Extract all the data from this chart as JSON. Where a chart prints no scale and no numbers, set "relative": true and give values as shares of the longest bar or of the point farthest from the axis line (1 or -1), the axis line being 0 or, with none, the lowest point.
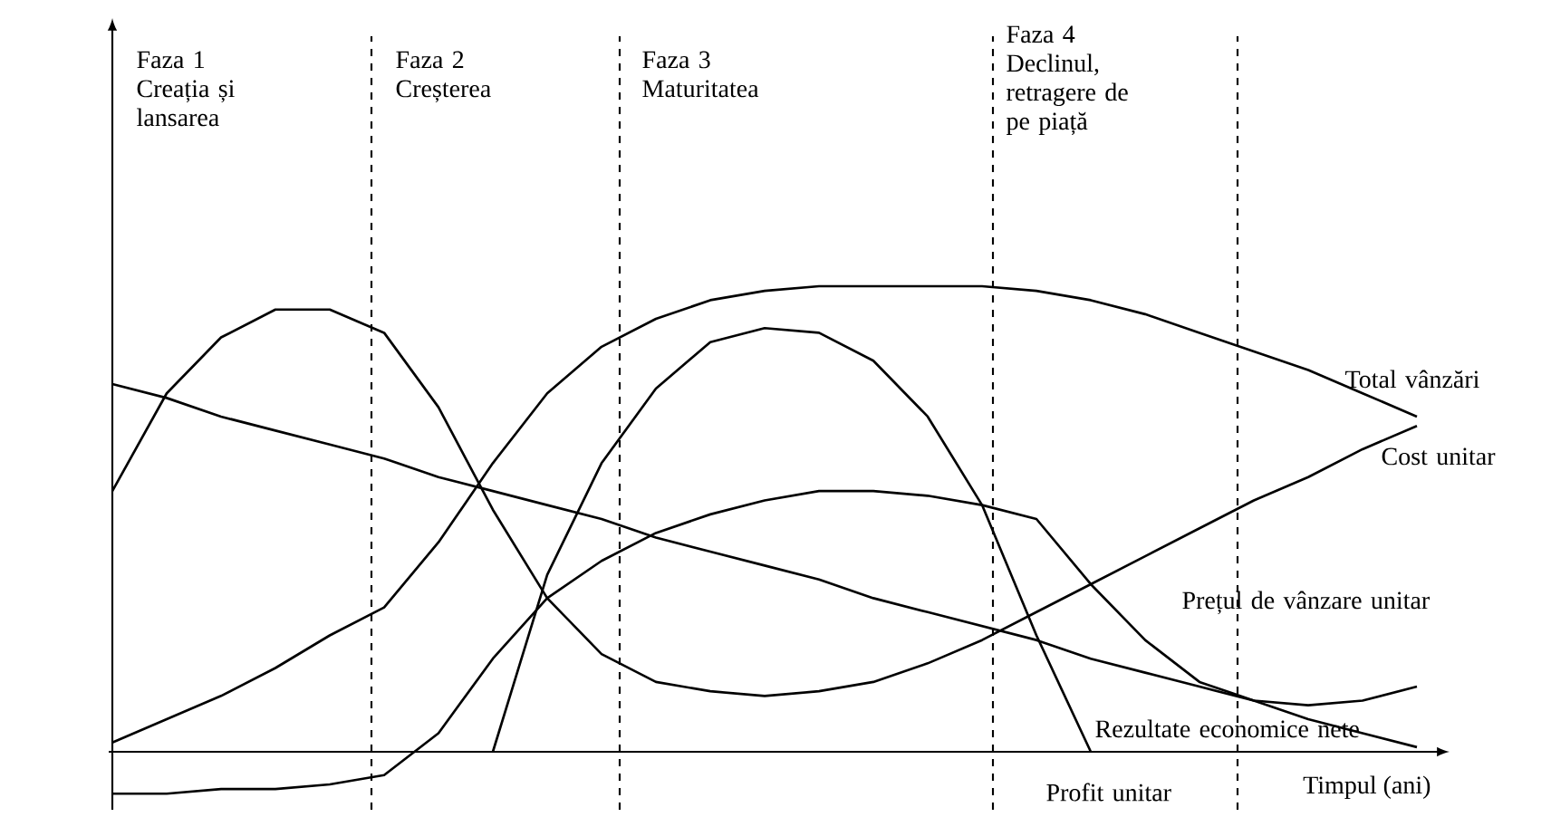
{
  "chart_data": {
    "type": "line",
    "relative": true,
    "xlabel": "Timpul (ani)",
    "categories": [
      null,
      null,
      null,
      null,
      null,
      null,
      null,
      null,
      null,
      null,
      null,
      null,
      null,
      null,
      null,
      null,
      null,
      null,
      null,
      null,
      null,
      null,
      null,
      null,
      null
    ],
    "series": [
      {
        "color": "#000000",
        "values": [
          0.02,
          0.07,
          0.12,
          0.18,
          0.25,
          0.31,
          0.45,
          0.62,
          0.77,
          0.87,
          0.93,
          0.97,
          0.99,
          1.0,
          1.0,
          1.0,
          1.0,
          0.99,
          0.97,
          0.94,
          0.9,
          0.86,
          0.82,
          0.77,
          0.72
        ]
      },
      {
        "color": "#000000",
        "values": [
          null,
          null,
          null,
          null,
          null,
          null,
          null,
          0.0,
          0.38,
          0.62,
          0.78,
          0.88,
          0.91,
          0.9,
          0.84,
          0.72,
          0.53,
          0.25,
          0.0,
          null,
          null,
          null,
          null,
          null,
          null
        ]
      },
      {
        "color": "#000000",
        "values": [
          0.56,
          0.77,
          0.89,
          0.95,
          0.95,
          0.9,
          0.74,
          0.52,
          0.33,
          0.21,
          0.15,
          0.13,
          0.12,
          0.13,
          0.15,
          0.19,
          0.24,
          0.3,
          0.36,
          0.42,
          0.48,
          0.54,
          0.59,
          0.65,
          0.7
        ]
      },
      {
        "color": "#000000",
        "values": [
          -0.09,
          -0.09,
          -0.08,
          -0.08,
          -0.07,
          -0.05,
          0.04,
          0.2,
          0.33,
          0.41,
          0.47,
          0.51,
          0.54,
          0.56,
          0.56,
          0.55,
          0.53,
          0.5,
          0.36,
          0.24,
          0.15,
          0.11,
          0.1,
          0.11,
          0.14
        ]
      },
      {
        "color": "#000000",
        "values": [
          0.79,
          0.76,
          0.72,
          0.69,
          0.66,
          0.63,
          0.59,
          0.56,
          0.53,
          0.5,
          0.46,
          0.43,
          0.4,
          0.37,
          0.33,
          0.3,
          0.27,
          0.24,
          0.2,
          0.17,
          0.14,
          0.11,
          0.07,
          0.04,
          0.01
        ]
      }
    ],
    "annotations": [
      "Faza 1 Creația și lansarea",
      "Faza 2 Creșterea",
      "Faza 3 Maturitatea",
      "Faza 4 Declinul, retragere de pe piață",
      "Total vânzări",
      "Cost unitar",
      "Prețul de vânzare unitar",
      "Rezultate economice nete",
      "Profit unitar"
    ]
  }
}
